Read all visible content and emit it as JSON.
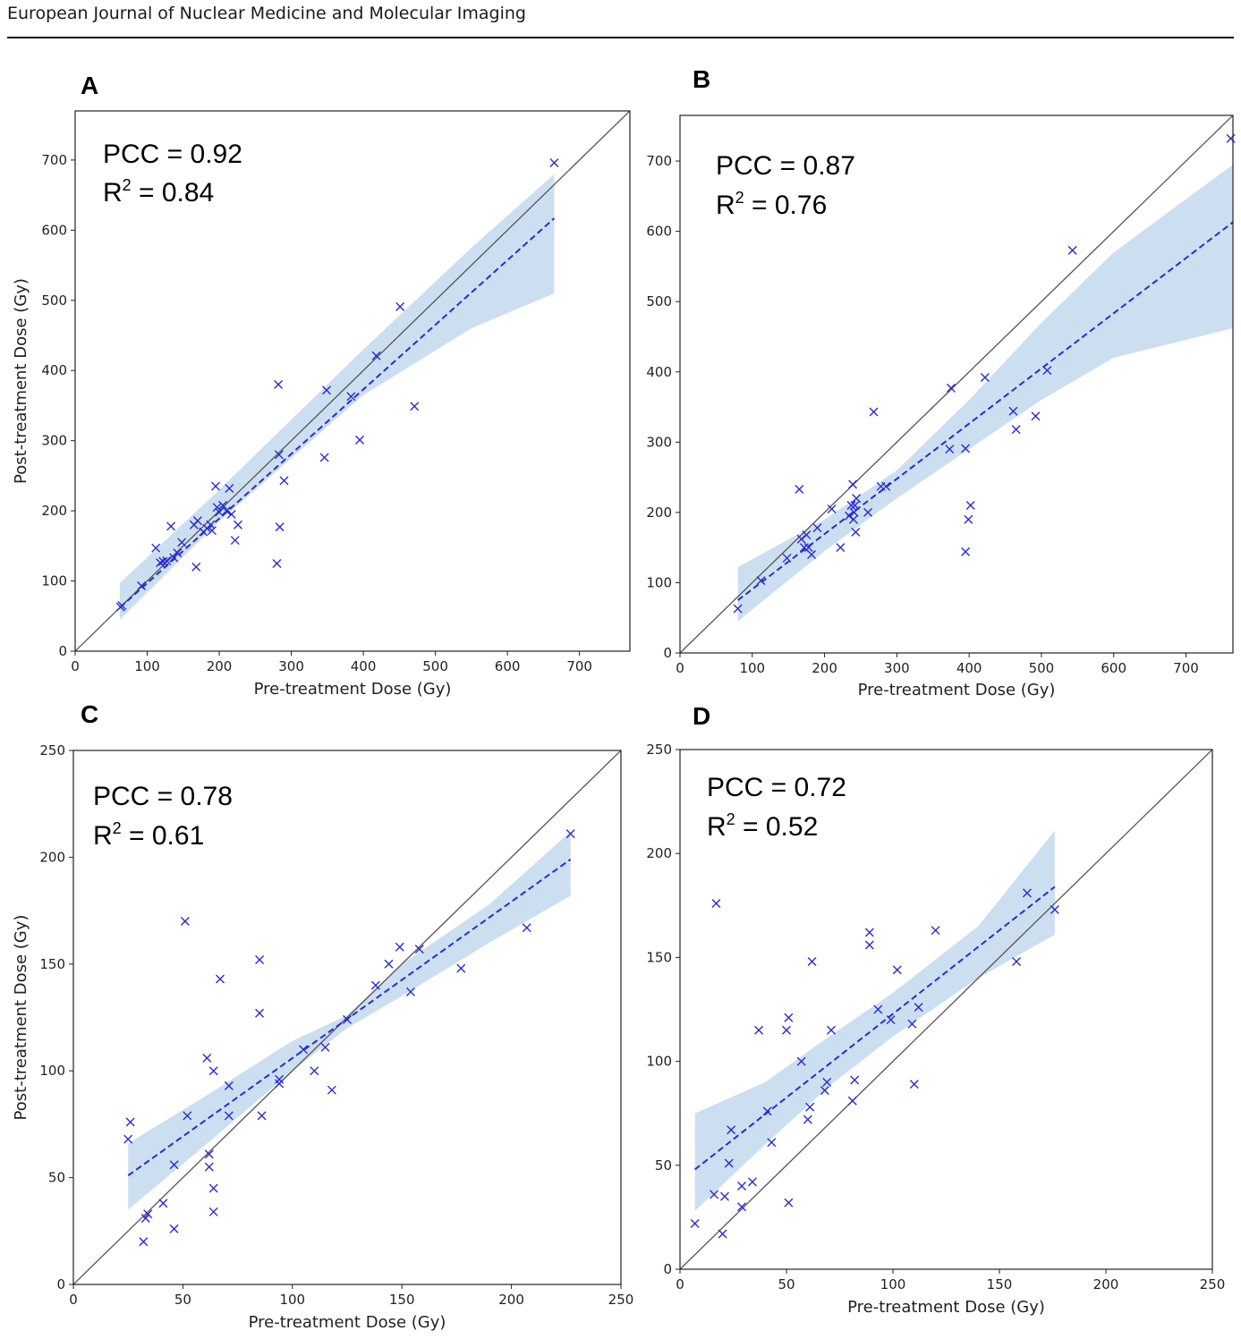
{
  "header": {
    "journal_title": "European Journal of Nuclear Medicine and Molecular Imaging"
  },
  "colors": {
    "points": "#2a2ad6",
    "fit_line": "#2a2ad6",
    "ci_band": "#c6dcee",
    "identity_line": "#555555"
  },
  "chart_data": [
    {
      "type": "scatter",
      "panel": "A",
      "xlabel": "Pre-treatment Dose (Gy)",
      "ylabel": "Post-treatment Dose (Gy)",
      "xlim": [
        0,
        770
      ],
      "ylim": [
        0,
        770
      ],
      "xticks": [
        0,
        100,
        200,
        300,
        400,
        500,
        600,
        700
      ],
      "yticks": [
        0,
        100,
        200,
        300,
        400,
        500,
        600,
        700
      ],
      "stats": {
        "pcc_label": "PCC = 0.92",
        "r2_prefix": "R",
        "r2_sup": "2",
        "r2_suffix": " = 0.84"
      },
      "fit": {
        "x0": 62,
        "y0": 62,
        "x1": 665,
        "y1": 617
      },
      "band_upper": [
        [
          62,
          97
        ],
        [
          200,
          230
        ],
        [
          400,
          430
        ],
        [
          550,
          575
        ],
        [
          665,
          680
        ]
      ],
      "band_lower": [
        [
          62,
          45
        ],
        [
          200,
          185
        ],
        [
          400,
          365
        ],
        [
          550,
          460
        ],
        [
          665,
          510
        ]
      ],
      "points": [
        [
          63,
          63
        ],
        [
          65,
          65
        ],
        [
          92,
          93
        ],
        [
          112,
          147
        ],
        [
          118,
          126
        ],
        [
          122,
          128
        ],
        [
          127,
          129
        ],
        [
          133,
          178
        ],
        [
          137,
          133
        ],
        [
          142,
          140
        ],
        [
          148,
          155
        ],
        [
          165,
          180
        ],
        [
          168,
          120
        ],
        [
          170,
          186
        ],
        [
          178,
          170
        ],
        [
          183,
          175
        ],
        [
          188,
          180
        ],
        [
          190,
          172
        ],
        [
          195,
          235
        ],
        [
          197,
          205
        ],
        [
          200,
          198
        ],
        [
          205,
          208
        ],
        [
          210,
          200
        ],
        [
          214,
          232
        ],
        [
          217,
          195
        ],
        [
          222,
          158
        ],
        [
          226,
          180
        ],
        [
          280,
          125
        ],
        [
          282,
          380
        ],
        [
          283,
          280
        ],
        [
          284,
          177
        ],
        [
          290,
          243
        ],
        [
          346,
          276
        ],
        [
          349,
          372
        ],
        [
          383,
          363
        ],
        [
          395,
          301
        ],
        [
          418,
          421
        ],
        [
          451,
          491
        ],
        [
          471,
          349
        ],
        [
          665,
          696
        ]
      ]
    },
    {
      "type": "scatter",
      "panel": "B",
      "xlabel": "Pre-treatment Dose (Gy)",
      "ylabel": "",
      "xlim": [
        0,
        765
      ],
      "ylim": [
        0,
        765
      ],
      "xticks": [
        0,
        100,
        200,
        300,
        400,
        500,
        600,
        700
      ],
      "yticks": [
        0,
        100,
        200,
        300,
        400,
        500,
        600,
        700
      ],
      "stats": {
        "pcc_label": "PCC = 0.87",
        "r2_prefix": "R",
        "r2_sup": "2",
        "r2_suffix": " = 0.76"
      },
      "fit": {
        "x0": 80,
        "y0": 75,
        "x1": 765,
        "y1": 613
      },
      "band_upper": [
        [
          80,
          122
        ],
        [
          200,
          190
        ],
        [
          300,
          260
        ],
        [
          400,
          360
        ],
        [
          500,
          470
        ],
        [
          600,
          570
        ],
        [
          765,
          695
        ]
      ],
      "band_lower": [
        [
          80,
          45
        ],
        [
          200,
          145
        ],
        [
          300,
          220
        ],
        [
          400,
          290
        ],
        [
          500,
          360
        ],
        [
          600,
          420
        ],
        [
          765,
          462
        ]
      ],
      "points": [
        [
          80,
          63
        ],
        [
          112,
          103
        ],
        [
          148,
          135
        ],
        [
          165,
          233
        ],
        [
          168,
          162
        ],
        [
          172,
          150
        ],
        [
          175,
          168
        ],
        [
          178,
          150
        ],
        [
          182,
          140
        ],
        [
          190,
          178
        ],
        [
          210,
          205
        ],
        [
          222,
          150
        ],
        [
          234,
          195
        ],
        [
          237,
          210
        ],
        [
          239,
          240
        ],
        [
          240,
          190
        ],
        [
          241,
          200
        ],
        [
          242,
          210
        ],
        [
          243,
          172
        ],
        [
          244,
          220
        ],
        [
          260,
          200
        ],
        [
          268,
          343
        ],
        [
          278,
          237
        ],
        [
          285,
          237
        ],
        [
          373,
          290
        ],
        [
          375,
          377
        ],
        [
          395,
          291
        ],
        [
          395,
          144
        ],
        [
          399,
          190
        ],
        [
          402,
          210
        ],
        [
          422,
          392
        ],
        [
          461,
          344
        ],
        [
          465,
          318
        ],
        [
          492,
          337
        ],
        [
          508,
          402
        ],
        [
          543,
          573
        ],
        [
          762,
          732
        ]
      ]
    },
    {
      "type": "scatter",
      "panel": "C",
      "xlabel": "Pre-treatment Dose (Gy)",
      "ylabel": "Post-treatment Dose (Gy)",
      "xlim": [
        0,
        250
      ],
      "ylim": [
        0,
        250
      ],
      "xticks": [
        0,
        50,
        100,
        150,
        200,
        250
      ],
      "yticks": [
        0,
        50,
        100,
        150,
        200,
        250
      ],
      "stats": {
        "pcc_label": "PCC = 0.78",
        "r2_prefix": "R",
        "r2_sup": "2",
        "r2_suffix": " = 0.61"
      },
      "fit": {
        "x0": 25,
        "y0": 51,
        "x1": 227,
        "y1": 199
      },
      "band_upper": [
        [
          25,
          66
        ],
        [
          60,
          88
        ],
        [
          100,
          114
        ],
        [
          125,
          126
        ],
        [
          150,
          150
        ],
        [
          190,
          178
        ],
        [
          227,
          212
        ]
      ],
      "band_lower": [
        [
          25,
          35
        ],
        [
          60,
          65
        ],
        [
          100,
          100
        ],
        [
          125,
          120
        ],
        [
          150,
          135
        ],
        [
          190,
          160
        ],
        [
          227,
          182
        ]
      ],
      "points": [
        [
          25,
          68
        ],
        [
          26,
          76
        ],
        [
          32,
          20
        ],
        [
          33,
          31
        ],
        [
          34,
          33
        ],
        [
          41,
          38
        ],
        [
          46,
          56
        ],
        [
          46,
          26
        ],
        [
          51,
          170
        ],
        [
          52,
          79
        ],
        [
          61,
          106
        ],
        [
          62,
          61
        ],
        [
          62,
          55
        ],
        [
          64,
          100
        ],
        [
          64,
          45
        ],
        [
          64,
          34
        ],
        [
          67,
          143
        ],
        [
          71,
          93
        ],
        [
          71,
          79
        ],
        [
          85,
          152
        ],
        [
          85,
          127
        ],
        [
          86,
          79
        ],
        [
          94,
          96
        ],
        [
          94,
          94
        ],
        [
          105,
          110
        ],
        [
          110,
          100
        ],
        [
          115,
          111
        ],
        [
          118,
          91
        ],
        [
          125,
          124
        ],
        [
          138,
          140
        ],
        [
          144,
          150
        ],
        [
          149,
          158
        ],
        [
          154,
          137
        ],
        [
          158,
          157
        ],
        [
          177,
          148
        ],
        [
          207,
          167
        ],
        [
          227,
          211
        ]
      ]
    },
    {
      "type": "scatter",
      "panel": "D",
      "xlabel": "Pre-treatment Dose (Gy)",
      "ylabel": "",
      "xlim": [
        0,
        250
      ],
      "ylim": [
        0,
        250
      ],
      "xticks": [
        0,
        50,
        100,
        150,
        200,
        250
      ],
      "yticks": [
        0,
        50,
        100,
        150,
        200,
        250
      ],
      "stats": {
        "pcc_label": "PCC = 0.72",
        "r2_prefix": "R",
        "r2_sup": "2",
        "r2_suffix": " = 0.52"
      },
      "fit": {
        "x0": 7,
        "y0": 48,
        "x1": 176,
        "y1": 184
      },
      "band_upper": [
        [
          7,
          75
        ],
        [
          40,
          90
        ],
        [
          70,
          112
        ],
        [
          100,
          133
        ],
        [
          140,
          165
        ],
        [
          176,
          211
        ]
      ],
      "band_lower": [
        [
          7,
          28
        ],
        [
          40,
          60
        ],
        [
          70,
          88
        ],
        [
          100,
          112
        ],
        [
          140,
          140
        ],
        [
          176,
          161
        ]
      ],
      "points": [
        [
          7,
          22
        ],
        [
          16,
          36
        ],
        [
          17,
          176
        ],
        [
          20,
          17
        ],
        [
          21,
          35
        ],
        [
          23,
          51
        ],
        [
          24,
          67
        ],
        [
          29,
          40
        ],
        [
          29,
          30
        ],
        [
          34,
          42
        ],
        [
          37,
          115
        ],
        [
          41,
          76
        ],
        [
          43,
          61
        ],
        [
          50,
          115
        ],
        [
          51,
          121
        ],
        [
          51,
          32
        ],
        [
          57,
          100
        ],
        [
          60,
          72
        ],
        [
          61,
          78
        ],
        [
          62,
          148
        ],
        [
          68,
          86
        ],
        [
          69,
          90
        ],
        [
          71,
          115
        ],
        [
          81,
          81
        ],
        [
          82,
          91
        ],
        [
          89,
          156
        ],
        [
          89,
          162
        ],
        [
          93,
          125
        ],
        [
          99,
          120
        ],
        [
          102,
          144
        ],
        [
          109,
          118
        ],
        [
          110,
          89
        ],
        [
          112,
          126
        ],
        [
          120,
          163
        ],
        [
          158,
          148
        ],
        [
          163,
          181
        ],
        [
          176,
          173
        ]
      ]
    }
  ]
}
